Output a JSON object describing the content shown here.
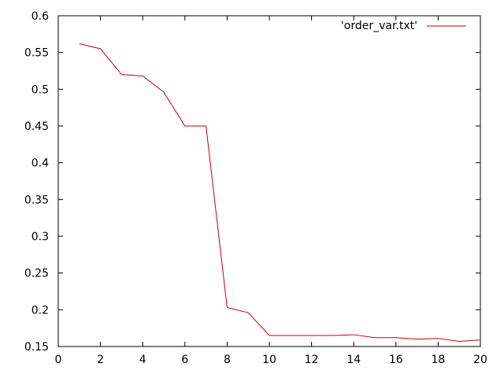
{
  "chart_data": {
    "type": "line",
    "title": "",
    "xlabel": "",
    "ylabel": "",
    "xlim": [
      0,
      20
    ],
    "ylim": [
      0.15,
      0.6
    ],
    "x_ticks": [
      0,
      2,
      4,
      6,
      8,
      10,
      12,
      14,
      16,
      18,
      20
    ],
    "y_ticks": [
      0.15,
      0.2,
      0.25,
      0.3,
      0.35,
      0.4,
      0.45,
      0.5,
      0.55,
      0.6
    ],
    "x_tick_labels": [
      "0",
      "2",
      "4",
      "6",
      "8",
      "10",
      "12",
      "14",
      "16",
      "18",
      "20"
    ],
    "y_tick_labels": [
      "0.15",
      "0.2",
      "0.25",
      "0.3",
      "0.35",
      "0.4",
      "0.45",
      "0.5",
      "0.55",
      "0.6"
    ],
    "grid": false,
    "legend_position": "top-right",
    "series": [
      {
        "name": "'order_var.txt'",
        "color": "#cc0000",
        "x": [
          1,
          2,
          3,
          4,
          5,
          6,
          7,
          8,
          9,
          10,
          11,
          12,
          13,
          14,
          15,
          16,
          17,
          18,
          19,
          20
        ],
        "y": [
          0.562,
          0.555,
          0.52,
          0.518,
          0.496,
          0.45,
          0.45,
          0.203,
          0.196,
          0.165,
          0.165,
          0.165,
          0.165,
          0.166,
          0.162,
          0.162,
          0.16,
          0.161,
          0.157,
          0.159
        ]
      }
    ]
  }
}
